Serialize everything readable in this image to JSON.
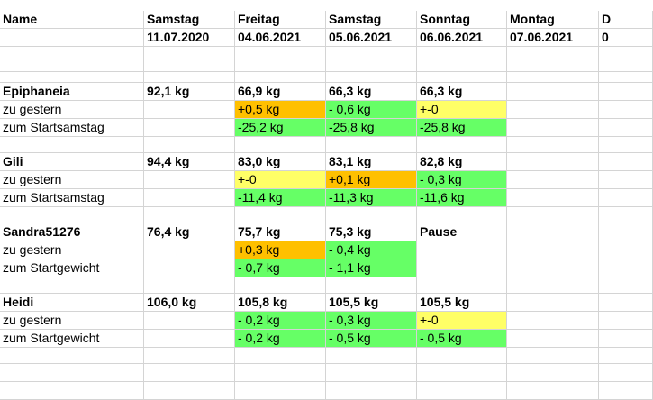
{
  "colors": {
    "green": "#66ff66",
    "orange": "#ffc000",
    "yellow": "#ffff66",
    "gridline": "#d4d4d4"
  },
  "header": {
    "name_label": "Name",
    "columns": [
      {
        "day": "Samstag",
        "date": "11.07.2020"
      },
      {
        "day": "Freitag",
        "date": "04.06.2021"
      },
      {
        "day": "Samstag",
        "date": "05.06.2021"
      },
      {
        "day": "Sonntag",
        "date": "06.06.2021"
      },
      {
        "day": "Montag",
        "date": "07.06.2021"
      },
      {
        "day": "D",
        "date": "0"
      }
    ]
  },
  "people": [
    {
      "name": "Epiphaneia",
      "weights": [
        "92,1 kg",
        "66,9 kg",
        "66,3 kg",
        "66,3 kg",
        ""
      ],
      "rows": [
        {
          "label": "zu gestern",
          "values": [
            "",
            "+0,5 kg",
            "- 0,6 kg",
            "+-0",
            ""
          ],
          "colors": [
            "",
            "orange",
            "green",
            "yellow",
            ""
          ]
        },
        {
          "label": "zum Startsamstag",
          "values": [
            "",
            "-25,2 kg",
            "-25,8 kg",
            "-25,8 kg",
            ""
          ],
          "colors": [
            "",
            "green",
            "green",
            "green",
            ""
          ]
        }
      ]
    },
    {
      "name": "Gili",
      "weights": [
        "94,4 kg",
        "83,0 kg",
        "83,1 kg",
        "82,8 kg",
        ""
      ],
      "rows": [
        {
          "label": "zu gestern",
          "values": [
            "",
            "+-0",
            "+0,1 kg",
            "- 0,3 kg",
            ""
          ],
          "colors": [
            "",
            "yellow",
            "orange",
            "green",
            ""
          ]
        },
        {
          "label": "zum Startsamstag",
          "values": [
            "",
            "-11,4 kg",
            "-11,3 kg",
            "-11,6 kg",
            ""
          ],
          "colors": [
            "",
            "green",
            "green",
            "green",
            ""
          ]
        }
      ]
    },
    {
      "name": "Sandra51276",
      "weights": [
        "76,4 kg",
        "75,7 kg",
        "75,3 kg",
        "Pause",
        ""
      ],
      "rows": [
        {
          "label": "zu gestern",
          "values": [
            "",
            "+0,3 kg",
            "- 0,4 kg",
            "",
            ""
          ],
          "colors": [
            "",
            "orange",
            "green",
            "",
            ""
          ]
        },
        {
          "label": "zum Startgewicht",
          "values": [
            "",
            "- 0,7 kg",
            "- 1,1 kg",
            "",
            ""
          ],
          "colors": [
            "",
            "green",
            "green",
            "",
            ""
          ]
        }
      ]
    },
    {
      "name": "Heidi",
      "weights": [
        "106,0 kg",
        "105,8 kg",
        "105,5 kg",
        "105,5 kg",
        ""
      ],
      "rows": [
        {
          "label": "zu gestern",
          "values": [
            "",
            "- 0,2 kg",
            "- 0,3 kg",
            "+-0",
            ""
          ],
          "colors": [
            "",
            "green",
            "green",
            "yellow",
            ""
          ]
        },
        {
          "label": "zum Startgewicht",
          "values": [
            "",
            "- 0,2 kg",
            "- 0,5 kg",
            "- 0,5 kg",
            ""
          ],
          "colors": [
            "",
            "green",
            "green",
            "green",
            ""
          ]
        }
      ]
    }
  ]
}
